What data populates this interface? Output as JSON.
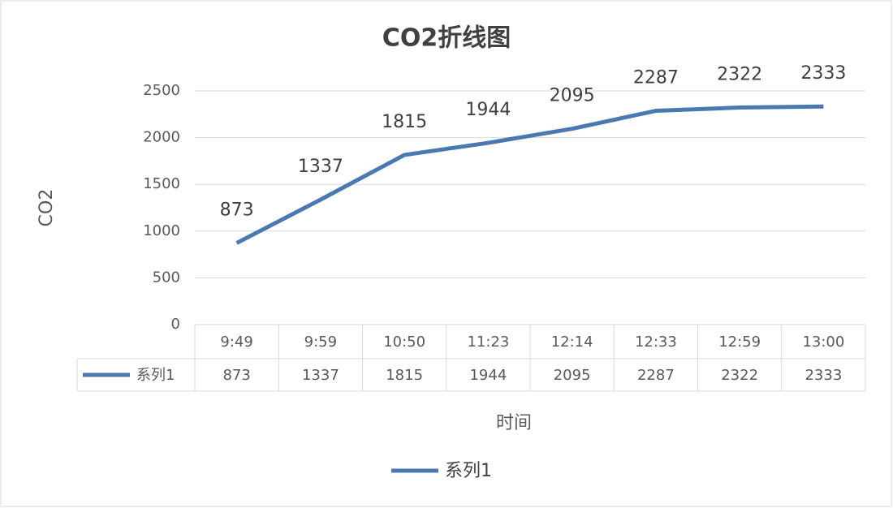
{
  "chart_data": {
    "type": "line",
    "title": "CO2折线图",
    "y_label": "CO2",
    "x_label": "时间",
    "categories": [
      "9:49",
      "9:59",
      "10:50",
      "11:23",
      "12:14",
      "12:33",
      "12:59",
      "13:00"
    ],
    "series": [
      {
        "name": "系列1",
        "color": "#4a78b0",
        "values": [
          873,
          1337,
          1815,
          1944,
          2095,
          2287,
          2322,
          2333
        ]
      }
    ],
    "ylim": [
      0,
      2500
    ],
    "yticks": [
      0,
      500,
      1000,
      1500,
      2000,
      2500
    ],
    "grid": true,
    "legend": "bottom",
    "data_table": true,
    "data_labels": true
  }
}
